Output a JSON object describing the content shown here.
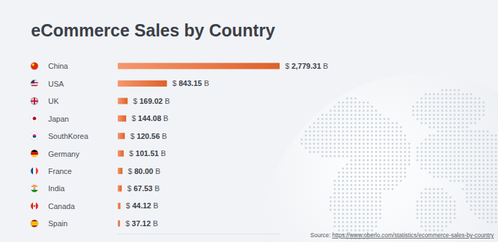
{
  "chart_data": {
    "type": "bar",
    "orientation": "horizontal",
    "title": "eCommerce Sales by Country",
    "categories": [
      "China",
      "USA",
      "UK",
      "Japan",
      "SouthKorea",
      "Germany",
      "France",
      "India",
      "Canada",
      "Spain"
    ],
    "values": [
      2779.31,
      843.15,
      169.02,
      144.08,
      120.56,
      101.51,
      80.0,
      67.53,
      44.12,
      37.12
    ],
    "value_labels": [
      "$ 2,779.31 B",
      "$ 843.15 B",
      "$ 169.02 B",
      "$ 144.08 B",
      "$ 120.56 B",
      "$ 101.51 B",
      "$ 80.00 B",
      "$ 67.53 B",
      "$ 44.12 B",
      "$ 37.12 B"
    ],
    "data_labels": true,
    "color": "#f26a2e",
    "xlim": [
      0,
      2779.31
    ],
    "tick_labels": "y",
    "grid": false,
    "source": "Source: https://www.oberlo.com/statistics/ecommerce-sales-by-country"
  }
}
